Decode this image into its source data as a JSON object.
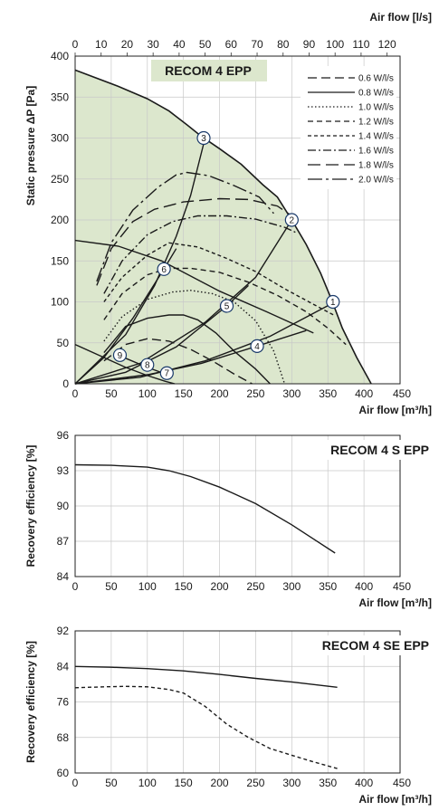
{
  "chart_data": [
    {
      "type": "line",
      "title": "RECOM 4 EPP",
      "xlabel": "Air flow [m³/h]",
      "x2label": "Air flow [l/s]",
      "ylabel": "Static pressure ΔP [Pa]",
      "xlim": [
        0,
        450
      ],
      "x2lim": [
        0,
        125
      ],
      "ylim": [
        0,
        400
      ],
      "xticks": [
        "0",
        "50",
        "100",
        "150",
        "200",
        "250",
        "300",
        "350",
        "400",
        "450"
      ],
      "x2ticks": [
        "0",
        "10",
        "20",
        "30",
        "40",
        "50",
        "60",
        "70",
        "80",
        "90",
        "100",
        "110",
        "120"
      ],
      "yticks": [
        "0",
        "50",
        "100",
        "150",
        "200",
        "250",
        "300",
        "350",
        "400"
      ],
      "grid": true,
      "legend_position": "top-right",
      "envelope": {
        "fill": "#dce7cd",
        "points": [
          [
            0,
            383
          ],
          [
            60,
            363
          ],
          [
            100,
            348
          ],
          [
            130,
            333
          ],
          [
            155,
            316
          ],
          [
            175,
            302
          ],
          [
            200,
            287
          ],
          [
            230,
            268
          ],
          [
            260,
            243
          ],
          [
            280,
            228
          ],
          [
            300,
            200
          ],
          [
            320,
            170
          ],
          [
            340,
            135
          ],
          [
            355,
            103
          ],
          [
            370,
            68
          ],
          [
            390,
            32
          ],
          [
            410,
            0
          ]
        ]
      },
      "series": [
        {
          "name": "0.6 W/l/s",
          "style": "dash-long",
          "points": [
            [
              40,
              28
            ],
            [
              70,
              48
            ],
            [
              100,
              55
            ],
            [
              130,
              52
            ],
            [
              160,
              42
            ],
            [
              190,
              28
            ],
            [
              220,
              12
            ],
            [
              245,
              0
            ]
          ]
        },
        {
          "name": "0.8 W/l/s",
          "style": "solid",
          "points": [
            [
              40,
              38
            ],
            [
              70,
              70
            ],
            [
              100,
              80
            ],
            [
              130,
              84
            ],
            [
              150,
              84
            ],
            [
              170,
              78
            ],
            [
              195,
              62
            ],
            [
              220,
              40
            ],
            [
              250,
              18
            ],
            [
              270,
              0
            ]
          ]
        },
        {
          "name": "1.0 W/l/s",
          "style": "dot",
          "points": [
            [
              40,
              52
            ],
            [
              65,
              82
            ],
            [
              100,
              103
            ],
            [
              135,
              112
            ],
            [
              160,
              114
            ],
            [
              190,
              110
            ],
            [
              220,
              100
            ],
            [
              250,
              77
            ],
            [
              275,
              40
            ],
            [
              290,
              0
            ]
          ]
        },
        {
          "name": "1.2 W/l/s",
          "style": "dash-med",
          "points": [
            [
              40,
              78
            ],
            [
              65,
              110
            ],
            [
              100,
              133
            ],
            [
              130,
              141
            ],
            [
              160,
              141
            ],
            [
              200,
              136
            ],
            [
              240,
              124
            ],
            [
              280,
              108
            ],
            [
              320,
              88
            ],
            [
              350,
              68
            ],
            [
              375,
              48
            ]
          ]
        },
        {
          "name": "1.4 W/l/s",
          "style": "dash-short",
          "points": [
            [
              40,
              100
            ],
            [
              65,
              130
            ],
            [
              100,
              157
            ],
            [
              130,
              172
            ],
            [
              170,
              167
            ],
            [
              210,
              153
            ],
            [
              250,
              137
            ],
            [
              290,
              116
            ],
            [
              330,
              97
            ],
            [
              360,
              83
            ]
          ]
        },
        {
          "name": "1.6 W/l/s",
          "style": "dash-dot",
          "points": [
            [
              40,
              110
            ],
            [
              65,
              150
            ],
            [
              100,
              182
            ],
            [
              135,
              198
            ],
            [
              170,
              205
            ],
            [
              210,
              205
            ],
            [
              250,
              201
            ],
            [
              290,
              191
            ],
            [
              305,
              185
            ]
          ]
        },
        {
          "name": "1.8 W/l/s",
          "style": "long-gap",
          "points": [
            [
              30,
              120
            ],
            [
              50,
              165
            ],
            [
              80,
              198
            ],
            [
              110,
              213
            ],
            [
              150,
              222
            ],
            [
              200,
              226
            ],
            [
              240,
              225
            ],
            [
              280,
              217
            ],
            [
              300,
              205
            ]
          ]
        },
        {
          "name": "2.0 W/l/s",
          "style": "dash-dot-long",
          "points": [
            [
              30,
              125
            ],
            [
              50,
              172
            ],
            [
              80,
              212
            ],
            [
              115,
              240
            ],
            [
              140,
              255
            ],
            [
              155,
              258
            ],
            [
              185,
              254
            ],
            [
              220,
              242
            ],
            [
              255,
              228
            ],
            [
              275,
              208
            ]
          ]
        }
      ],
      "system_curves": [
        {
          "name": "duct-1",
          "points": [
            [
              0,
              0
            ],
            [
              90,
              8
            ],
            [
              180,
              28
            ],
            [
              270,
              58
            ],
            [
              360,
              100
            ]
          ]
        },
        {
          "name": "duct-2",
          "points": [
            [
              0,
              0
            ],
            [
              90,
              25
            ],
            [
              180,
              75
            ],
            [
              250,
              130
            ],
            [
              300,
              200
            ]
          ]
        },
        {
          "name": "duct-3",
          "points": [
            [
              0,
              0
            ],
            [
              70,
              60
            ],
            [
              110,
              120
            ],
            [
              140,
              180
            ],
            [
              160,
              230
            ],
            [
              180,
              300
            ]
          ]
        },
        {
          "name": "duct-4",
          "points": [
            [
              0,
              0
            ],
            [
              100,
              11
            ],
            [
              175,
              25
            ],
            [
              252,
              46
            ],
            [
              320,
              65
            ]
          ]
        },
        {
          "name": "duct-5",
          "points": [
            [
              0,
              0
            ],
            [
              70,
              14
            ],
            [
              140,
              45
            ],
            [
              210,
              95
            ],
            [
              240,
              120
            ]
          ]
        },
        {
          "name": "duct-6",
          "points": [
            [
              0,
              0
            ],
            [
              40,
              32
            ],
            [
              80,
              80
            ],
            [
              123,
              140
            ],
            [
              140,
              165
            ]
          ]
        },
        {
          "name": "duct-7",
          "points": [
            [
              0,
              48
            ],
            [
              40,
              32
            ],
            [
              70,
              20
            ],
            [
              100,
              10
            ],
            [
              125,
              3
            ],
            [
              138,
              0
            ]
          ]
        },
        {
          "name": "duct-8",
          "points": [
            [
              0,
              175
            ],
            [
              60,
              168
            ],
            [
              120,
              150
            ],
            [
              200,
              113
            ],
            [
              265,
              88
            ],
            [
              330,
              62
            ]
          ]
        },
        {
          "name": "duct-9",
          "points": [
            [
              62,
              34
            ],
            [
              100,
              20
            ],
            [
              125,
              12
            ]
          ]
        }
      ],
      "markers": [
        {
          "label": "1",
          "x": 357,
          "y": 100
        },
        {
          "label": "2",
          "x": 300,
          "y": 200
        },
        {
          "label": "3",
          "x": 178,
          "y": 300
        },
        {
          "label": "4",
          "x": 252,
          "y": 46
        },
        {
          "label": "5",
          "x": 210,
          "y": 95
        },
        {
          "label": "6",
          "x": 123,
          "y": 140
        },
        {
          "label": "7",
          "x": 127,
          "y": 13
        },
        {
          "label": "8",
          "x": 100,
          "y": 23
        },
        {
          "label": "9",
          "x": 62,
          "y": 35
        }
      ]
    },
    {
      "type": "line",
      "title": "RECOM 4 S EPP",
      "xlabel": "Air flow [m³/h]",
      "ylabel": "Recovery efficiency [%]",
      "xlim": [
        0,
        450
      ],
      "ylim": [
        84,
        96
      ],
      "xticks": [
        "0",
        "50",
        "100",
        "150",
        "200",
        "250",
        "300",
        "350",
        "400",
        "450"
      ],
      "yticks": [
        "84",
        "87",
        "90",
        "93",
        "96"
      ],
      "grid": true,
      "series": [
        {
          "style": "solid",
          "points": [
            [
              0,
              93.5
            ],
            [
              50,
              93.45
            ],
            [
              100,
              93.3
            ],
            [
              130,
              93.0
            ],
            [
              160,
              92.5
            ],
            [
              200,
              91.6
            ],
            [
              250,
              90.2
            ],
            [
              300,
              88.4
            ],
            [
              330,
              87.2
            ],
            [
              360,
              86.0
            ]
          ]
        }
      ]
    },
    {
      "type": "line",
      "title": "RECOM 4 SE EPP",
      "xlabel": "Air flow [m³/h]",
      "ylabel": "Recovery efficiency [%]",
      "xlim": [
        0,
        450
      ],
      "ylim": [
        60,
        92
      ],
      "xticks": [
        "0",
        "50",
        "100",
        "150",
        "200",
        "250",
        "300",
        "350",
        "400",
        "450"
      ],
      "yticks": [
        "60",
        "68",
        "76",
        "84",
        "92"
      ],
      "grid": true,
      "series": [
        {
          "style": "solid",
          "points": [
            [
              0,
              84
            ],
            [
              50,
              83.8
            ],
            [
              100,
              83.5
            ],
            [
              150,
              83.0
            ],
            [
              200,
              82.2
            ],
            [
              250,
              81.3
            ],
            [
              300,
              80.5
            ],
            [
              363,
              79.3
            ]
          ]
        },
        {
          "style": "dash-short",
          "points": [
            [
              0,
              79.2
            ],
            [
              40,
              79.4
            ],
            [
              70,
              79.5
            ],
            [
              100,
              79.4
            ],
            [
              130,
              78.8
            ],
            [
              150,
              78.0
            ],
            [
              180,
              75.0
            ],
            [
              210,
              71.0
            ],
            [
              240,
              68.0
            ],
            [
              270,
              65.5
            ],
            [
              300,
              64.0
            ],
            [
              330,
              62.5
            ],
            [
              363,
              61.0
            ]
          ]
        }
      ]
    }
  ]
}
